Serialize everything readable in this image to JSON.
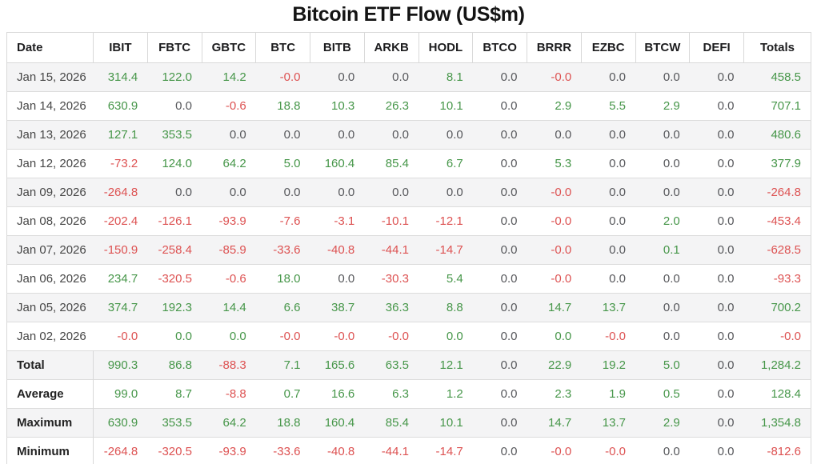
{
  "title": "Bitcoin ETF Flow (US$m)",
  "colors": {
    "positive": "#469649",
    "negative": "#dd5252",
    "neutral_zero": "#56575b",
    "header_text": "#1d1d1f",
    "date_text": "#474747",
    "row_alt_bg": "#f4f4f5",
    "border": "#d9d9d9"
  },
  "chart_data": {
    "type": "table",
    "title": "Bitcoin ETF Flow (US$m)",
    "columns": [
      "Date",
      "IBIT",
      "FBTC",
      "GBTC",
      "BTC",
      "BITB",
      "ARKB",
      "HODL",
      "BTCO",
      "BRRR",
      "EZBC",
      "BTCW",
      "DEFI",
      "Totals"
    ],
    "color_legend": {
      "g": "positive-green",
      "r": "negative-red",
      "k": "neutral-gray"
    },
    "rows": [
      {
        "label": "Jan 15, 2026",
        "cells": [
          [
            "314.4",
            "g"
          ],
          [
            "122.0",
            "g"
          ],
          [
            "14.2",
            "g"
          ],
          [
            "-0.0",
            "r"
          ],
          [
            "0.0",
            "k"
          ],
          [
            "0.0",
            "k"
          ],
          [
            "8.1",
            "g"
          ],
          [
            "0.0",
            "k"
          ],
          [
            "-0.0",
            "r"
          ],
          [
            "0.0",
            "k"
          ],
          [
            "0.0",
            "k"
          ],
          [
            "0.0",
            "k"
          ],
          [
            "458.5",
            "g"
          ]
        ]
      },
      {
        "label": "Jan 14, 2026",
        "cells": [
          [
            "630.9",
            "g"
          ],
          [
            "0.0",
            "k"
          ],
          [
            "-0.6",
            "r"
          ],
          [
            "18.8",
            "g"
          ],
          [
            "10.3",
            "g"
          ],
          [
            "26.3",
            "g"
          ],
          [
            "10.1",
            "g"
          ],
          [
            "0.0",
            "k"
          ],
          [
            "2.9",
            "g"
          ],
          [
            "5.5",
            "g"
          ],
          [
            "2.9",
            "g"
          ],
          [
            "0.0",
            "k"
          ],
          [
            "707.1",
            "g"
          ]
        ]
      },
      {
        "label": "Jan 13, 2026",
        "cells": [
          [
            "127.1",
            "g"
          ],
          [
            "353.5",
            "g"
          ],
          [
            "0.0",
            "k"
          ],
          [
            "0.0",
            "k"
          ],
          [
            "0.0",
            "k"
          ],
          [
            "0.0",
            "k"
          ],
          [
            "0.0",
            "k"
          ],
          [
            "0.0",
            "k"
          ],
          [
            "0.0",
            "k"
          ],
          [
            "0.0",
            "k"
          ],
          [
            "0.0",
            "k"
          ],
          [
            "0.0",
            "k"
          ],
          [
            "480.6",
            "g"
          ]
        ]
      },
      {
        "label": "Jan 12, 2026",
        "cells": [
          [
            "-73.2",
            "r"
          ],
          [
            "124.0",
            "g"
          ],
          [
            "64.2",
            "g"
          ],
          [
            "5.0",
            "g"
          ],
          [
            "160.4",
            "g"
          ],
          [
            "85.4",
            "g"
          ],
          [
            "6.7",
            "g"
          ],
          [
            "0.0",
            "k"
          ],
          [
            "5.3",
            "g"
          ],
          [
            "0.0",
            "k"
          ],
          [
            "0.0",
            "k"
          ],
          [
            "0.0",
            "k"
          ],
          [
            "377.9",
            "g"
          ]
        ]
      },
      {
        "label": "Jan 09, 2026",
        "cells": [
          [
            "-264.8",
            "r"
          ],
          [
            "0.0",
            "k"
          ],
          [
            "0.0",
            "k"
          ],
          [
            "0.0",
            "k"
          ],
          [
            "0.0",
            "k"
          ],
          [
            "0.0",
            "k"
          ],
          [
            "0.0",
            "k"
          ],
          [
            "0.0",
            "k"
          ],
          [
            "-0.0",
            "r"
          ],
          [
            "0.0",
            "k"
          ],
          [
            "0.0",
            "k"
          ],
          [
            "0.0",
            "k"
          ],
          [
            "-264.8",
            "r"
          ]
        ]
      },
      {
        "label": "Jan 08, 2026",
        "cells": [
          [
            "-202.4",
            "r"
          ],
          [
            "-126.1",
            "r"
          ],
          [
            "-93.9",
            "r"
          ],
          [
            "-7.6",
            "r"
          ],
          [
            "-3.1",
            "r"
          ],
          [
            "-10.1",
            "r"
          ],
          [
            "-12.1",
            "r"
          ],
          [
            "0.0",
            "k"
          ],
          [
            "-0.0",
            "r"
          ],
          [
            "0.0",
            "k"
          ],
          [
            "2.0",
            "g"
          ],
          [
            "0.0",
            "k"
          ],
          [
            "-453.4",
            "r"
          ]
        ]
      },
      {
        "label": "Jan 07, 2026",
        "cells": [
          [
            "-150.9",
            "r"
          ],
          [
            "-258.4",
            "r"
          ],
          [
            "-85.9",
            "r"
          ],
          [
            "-33.6",
            "r"
          ],
          [
            "-40.8",
            "r"
          ],
          [
            "-44.1",
            "r"
          ],
          [
            "-14.7",
            "r"
          ],
          [
            "0.0",
            "k"
          ],
          [
            "-0.0",
            "r"
          ],
          [
            "0.0",
            "k"
          ],
          [
            "0.1",
            "g"
          ],
          [
            "0.0",
            "k"
          ],
          [
            "-628.5",
            "r"
          ]
        ]
      },
      {
        "label": "Jan 06, 2026",
        "cells": [
          [
            "234.7",
            "g"
          ],
          [
            "-320.5",
            "r"
          ],
          [
            "-0.6",
            "r"
          ],
          [
            "18.0",
            "g"
          ],
          [
            "0.0",
            "k"
          ],
          [
            "-30.3",
            "r"
          ],
          [
            "5.4",
            "g"
          ],
          [
            "0.0",
            "k"
          ],
          [
            "-0.0",
            "r"
          ],
          [
            "0.0",
            "k"
          ],
          [
            "0.0",
            "k"
          ],
          [
            "0.0",
            "k"
          ],
          [
            "-93.3",
            "r"
          ]
        ]
      },
      {
        "label": "Jan 05, 2026",
        "cells": [
          [
            "374.7",
            "g"
          ],
          [
            "192.3",
            "g"
          ],
          [
            "14.4",
            "g"
          ],
          [
            "6.6",
            "g"
          ],
          [
            "38.7",
            "g"
          ],
          [
            "36.3",
            "g"
          ],
          [
            "8.8",
            "g"
          ],
          [
            "0.0",
            "k"
          ],
          [
            "14.7",
            "g"
          ],
          [
            "13.7",
            "g"
          ],
          [
            "0.0",
            "k"
          ],
          [
            "0.0",
            "k"
          ],
          [
            "700.2",
            "g"
          ]
        ]
      },
      {
        "label": "Jan 02, 2026",
        "cells": [
          [
            "-0.0",
            "r"
          ],
          [
            "0.0",
            "g"
          ],
          [
            "0.0",
            "g"
          ],
          [
            "-0.0",
            "r"
          ],
          [
            "-0.0",
            "r"
          ],
          [
            "-0.0",
            "r"
          ],
          [
            "0.0",
            "g"
          ],
          [
            "0.0",
            "k"
          ],
          [
            "0.0",
            "g"
          ],
          [
            "-0.0",
            "r"
          ],
          [
            "0.0",
            "k"
          ],
          [
            "0.0",
            "k"
          ],
          [
            "-0.0",
            "r"
          ]
        ]
      }
    ],
    "summary_rows": [
      {
        "label": "Total",
        "cells": [
          [
            "990.3",
            "g"
          ],
          [
            "86.8",
            "g"
          ],
          [
            "-88.3",
            "r"
          ],
          [
            "7.1",
            "g"
          ],
          [
            "165.6",
            "g"
          ],
          [
            "63.5",
            "g"
          ],
          [
            "12.1",
            "g"
          ],
          [
            "0.0",
            "k"
          ],
          [
            "22.9",
            "g"
          ],
          [
            "19.2",
            "g"
          ],
          [
            "5.0",
            "g"
          ],
          [
            "0.0",
            "k"
          ],
          [
            "1,284.2",
            "g"
          ]
        ]
      },
      {
        "label": "Average",
        "cells": [
          [
            "99.0",
            "g"
          ],
          [
            "8.7",
            "g"
          ],
          [
            "-8.8",
            "r"
          ],
          [
            "0.7",
            "g"
          ],
          [
            "16.6",
            "g"
          ],
          [
            "6.3",
            "g"
          ],
          [
            "1.2",
            "g"
          ],
          [
            "0.0",
            "k"
          ],
          [
            "2.3",
            "g"
          ],
          [
            "1.9",
            "g"
          ],
          [
            "0.5",
            "g"
          ],
          [
            "0.0",
            "k"
          ],
          [
            "128.4",
            "g"
          ]
        ]
      },
      {
        "label": "Maximum",
        "cells": [
          [
            "630.9",
            "g"
          ],
          [
            "353.5",
            "g"
          ],
          [
            "64.2",
            "g"
          ],
          [
            "18.8",
            "g"
          ],
          [
            "160.4",
            "g"
          ],
          [
            "85.4",
            "g"
          ],
          [
            "10.1",
            "g"
          ],
          [
            "0.0",
            "k"
          ],
          [
            "14.7",
            "g"
          ],
          [
            "13.7",
            "g"
          ],
          [
            "2.9",
            "g"
          ],
          [
            "0.0",
            "k"
          ],
          [
            "1,354.8",
            "g"
          ]
        ]
      },
      {
        "label": "Minimum",
        "cells": [
          [
            "-264.8",
            "r"
          ],
          [
            "-320.5",
            "r"
          ],
          [
            "-93.9",
            "r"
          ],
          [
            "-33.6",
            "r"
          ],
          [
            "-40.8",
            "r"
          ],
          [
            "-44.1",
            "r"
          ],
          [
            "-14.7",
            "r"
          ],
          [
            "0.0",
            "k"
          ],
          [
            "-0.0",
            "r"
          ],
          [
            "-0.0",
            "r"
          ],
          [
            "0.0",
            "k"
          ],
          [
            "0.0",
            "k"
          ],
          [
            "-812.6",
            "r"
          ]
        ]
      }
    ]
  }
}
